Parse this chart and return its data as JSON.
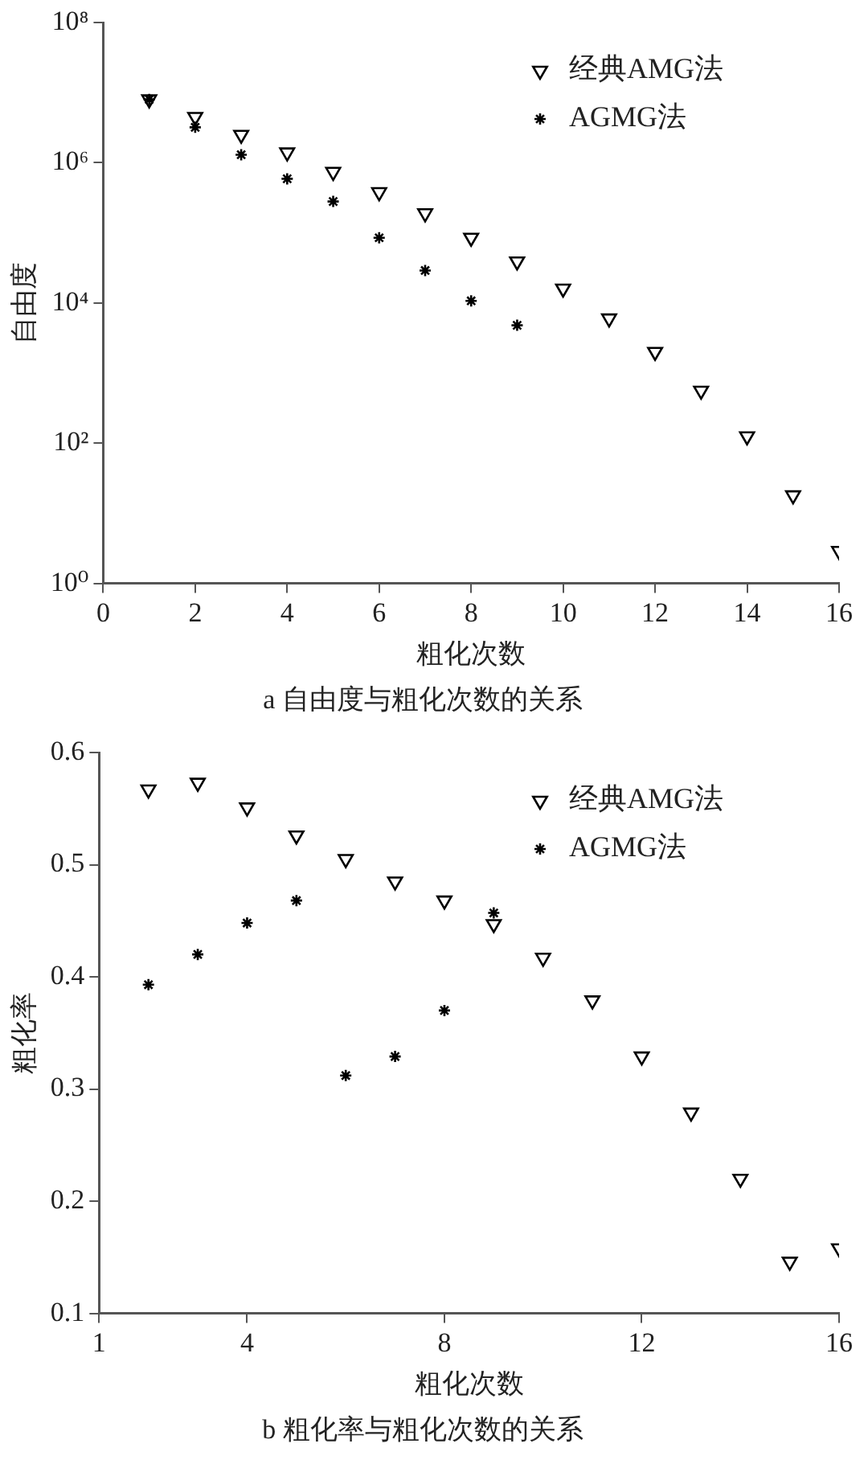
{
  "chart_data": [
    {
      "type": "scatter",
      "title": "a 自由度与粗化次数的关系",
      "xlabel": "粗化次数",
      "ylabel": "自由度",
      "log": "y",
      "legend": "top right",
      "xlim": [
        0,
        16
      ],
      "xticks": [
        0,
        2,
        4,
        6,
        8,
        10,
        12,
        14,
        16
      ],
      "ylim": [
        1,
        100000000
      ],
      "yticks": [
        {
          "value": 1,
          "label": "10⁰"
        },
        {
          "value": 100,
          "label": "10²"
        },
        {
          "value": 10000,
          "label": "10⁴"
        },
        {
          "value": 1000000,
          "label": "10⁶"
        },
        {
          "value": 100000000,
          "label": "10⁸"
        }
      ],
      "series": [
        {
          "name": "经典AMG法",
          "color": "#000000",
          "marker": "triangle",
          "x": [
            1,
            2,
            3,
            4,
            5,
            6,
            7,
            8,
            9,
            10,
            11,
            12,
            13,
            14,
            15,
            16
          ],
          "values": [
            8000000,
            4500000,
            2500000,
            1400000,
            740000,
            380000,
            190000,
            85000,
            39000,
            16000,
            6000,
            2000,
            560,
            125,
            18,
            2.9
          ]
        },
        {
          "name": "AGMG法",
          "color": "#000000",
          "marker": "cross",
          "x": [
            1,
            2,
            3,
            4,
            5,
            6,
            7,
            8,
            9
          ],
          "values": [
            8000000,
            3200000,
            1300000,
            590000,
            280000,
            85000,
            29000,
            10700,
            4800
          ]
        }
      ]
    },
    {
      "type": "scatter",
      "title": "b 粗化率与粗化次数的关系",
      "xlabel": "粗化次数",
      "ylabel": "粗化率",
      "legend": "top right",
      "xlim": [
        1,
        16
      ],
      "xticks": [
        1,
        4,
        8,
        12,
        16
      ],
      "ylim": [
        0.1,
        0.6
      ],
      "yticks": [
        0.1,
        0.2,
        0.3,
        0.4,
        0.5,
        0.6
      ],
      "series": [
        {
          "name": "经典AMG法",
          "color": "#000000",
          "marker": "triangle",
          "x": [
            2,
            3,
            4,
            5,
            6,
            7,
            8,
            9,
            10,
            11,
            12,
            13,
            14,
            15,
            16
          ],
          "values": [
            0.567,
            0.573,
            0.551,
            0.526,
            0.505,
            0.485,
            0.468,
            0.447,
            0.417,
            0.379,
            0.329,
            0.279,
            0.22,
            0.146,
            0.158
          ]
        },
        {
          "name": "AGMG法",
          "color": "#000000",
          "marker": "cross",
          "x": [
            2,
            3,
            4,
            5,
            6,
            7,
            8,
            9
          ],
          "values": [
            0.393,
            0.42,
            0.448,
            0.468,
            0.312,
            0.329,
            0.37,
            0.457
          ]
        }
      ]
    }
  ]
}
